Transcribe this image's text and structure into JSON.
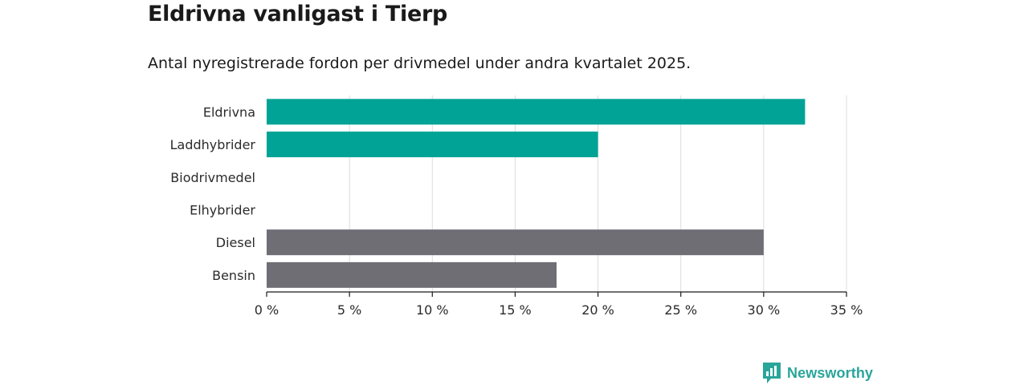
{
  "chart_data": {
    "type": "bar",
    "orientation": "horizontal",
    "title": "Eldrivna vanligast i Tierp",
    "subtitle": "Antal nyregistrerade fordon per drivmedel under andra kvartalet 2025.",
    "categories": [
      "Eldrivna",
      "Laddhybrider",
      "Biodrivmedel",
      "Elhybrider",
      "Diesel",
      "Bensin"
    ],
    "values": [
      32.5,
      20,
      0,
      0,
      30,
      17.5
    ],
    "bar_colors": [
      "#00a396",
      "#00a396",
      "#00a396",
      "#00a396",
      "#6f6e75",
      "#6f6e75"
    ],
    "xlim": [
      0,
      35
    ],
    "x_ticks": [
      0,
      5,
      10,
      15,
      20,
      25,
      30,
      35
    ],
    "x_tick_labels": [
      "0 %",
      "5 %",
      "10 %",
      "15 %",
      "20 %",
      "25 %",
      "30 %",
      "35 %"
    ],
    "xlabel": "",
    "ylabel": "",
    "grid": "vertical"
  },
  "brand": {
    "name": "Newsworthy",
    "color": "#2aa59a"
  }
}
